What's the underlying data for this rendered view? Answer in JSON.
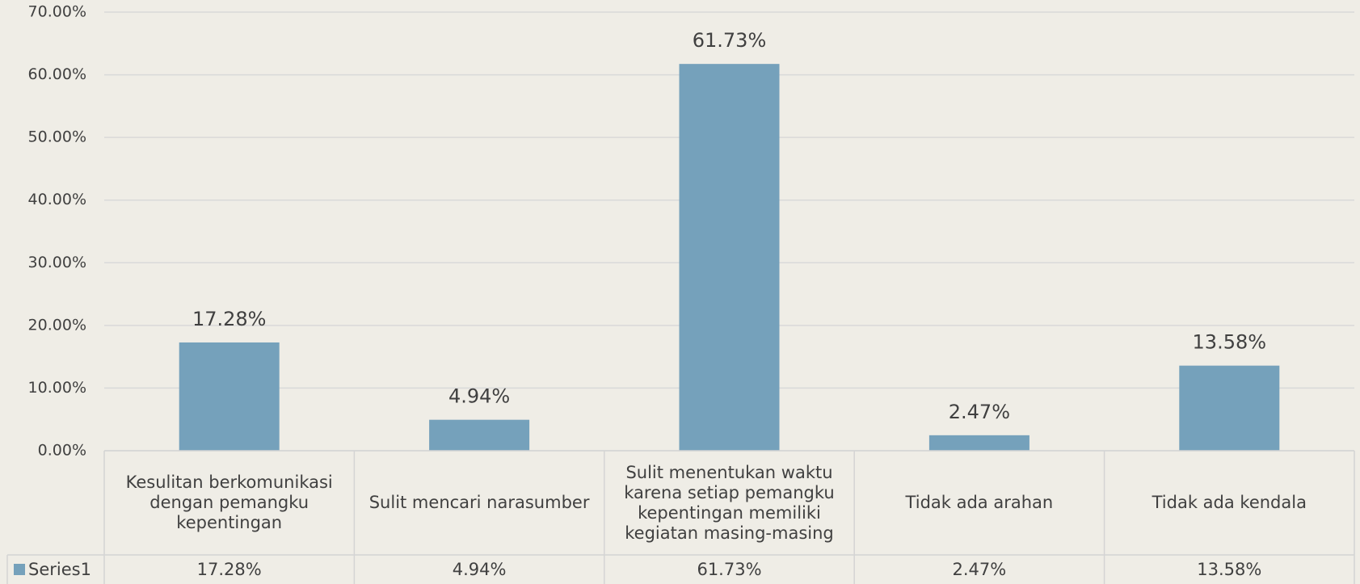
{
  "chart_data": {
    "type": "bar",
    "categories": [
      "Kesulitan berkomunikasi dengan pemangku kepentingan",
      "Sulit mencari narasumber",
      "Sulit menentukan waktu karena setiap pemangku kepentingan  memiliki kegiatan masing-masing",
      "Tidak ada arahan",
      "Tidak ada kendala"
    ],
    "series": [
      {
        "name": "Series1",
        "color": "#75a1bb",
        "values": [
          17.28,
          4.94,
          61.73,
          2.47,
          13.58
        ],
        "value_labels": [
          "17.28%",
          "4.94%",
          "61.73%",
          "2.47%",
          "13.58%"
        ]
      }
    ],
    "ylim": [
      0,
      70
    ],
    "yticks": [
      {
        "value": 0,
        "label": "0.00%"
      },
      {
        "value": 10,
        "label": "10.00%"
      },
      {
        "value": 20,
        "label": "20.00%"
      },
      {
        "value": 30,
        "label": "30.00%"
      },
      {
        "value": 40,
        "label": "40.00%"
      },
      {
        "value": 50,
        "label": "50.00%"
      },
      {
        "value": 60,
        "label": "60.00%"
      },
      {
        "value": 70,
        "label": "70.00%"
      }
    ],
    "grid": true,
    "data_table": true
  }
}
